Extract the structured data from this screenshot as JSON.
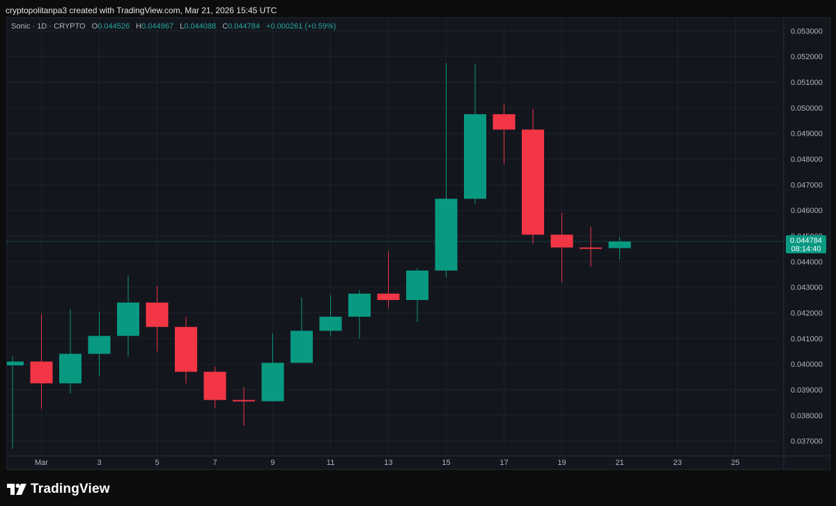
{
  "header": {
    "attribution": "cryptopolitanpa3 created with TradingView.com, Mar 21, 2026 15:45 UTC"
  },
  "legend": {
    "symbol": "Sonic · 1D · CRYPTO",
    "o_label": "O",
    "o_value": "0.044526",
    "h_label": "H",
    "h_value": "0.044967",
    "l_label": "L",
    "l_value": "0.044088",
    "c_label": "C",
    "c_value": "0.044784",
    "change": "+0.000261 (+0.59%)"
  },
  "price_tag": {
    "price": "0.044784",
    "countdown": "08:14:40"
  },
  "footer": {
    "brand": "TradingView"
  },
  "colors": {
    "up": "#089981",
    "down": "#f23645",
    "grid": "#1f222b",
    "axis_text": "#b2b5be"
  },
  "chart_data": {
    "type": "candlestick",
    "title": "",
    "xlabel": "",
    "ylabel": "",
    "ylim": [
      0.0365,
      0.0535
    ],
    "y_ticks": [
      "0.037000",
      "0.038000",
      "0.039000",
      "0.040000",
      "0.041000",
      "0.042000",
      "0.043000",
      "0.044000",
      "0.045000",
      "0.046000",
      "0.047000",
      "0.048000",
      "0.049000",
      "0.050000",
      "0.051000",
      "0.052000",
      "0.053000"
    ],
    "x_ticks": [
      {
        "label": "Mar",
        "day": 1
      },
      {
        "label": "3",
        "day": 3
      },
      {
        "label": "5",
        "day": 5
      },
      {
        "label": "7",
        "day": 7
      },
      {
        "label": "9",
        "day": 9
      },
      {
        "label": "11",
        "day": 11
      },
      {
        "label": "13",
        "day": 13
      },
      {
        "label": "15",
        "day": 15
      },
      {
        "label": "17",
        "day": 17
      },
      {
        "label": "19",
        "day": 19
      },
      {
        "label": "21",
        "day": 21
      },
      {
        "label": "23",
        "day": 23
      },
      {
        "label": "25",
        "day": 25
      }
    ],
    "last_price": 0.044784,
    "candles": [
      {
        "date": "Feb 28",
        "day": 0,
        "open": 0.03995,
        "high": 0.0403,
        "low": 0.0367,
        "close": 0.0401
      },
      {
        "date": "Mar 1",
        "day": 1,
        "open": 0.0401,
        "high": 0.04195,
        "low": 0.03825,
        "close": 0.03925
      },
      {
        "date": "Mar 2",
        "day": 2,
        "open": 0.03925,
        "high": 0.04215,
        "low": 0.03885,
        "close": 0.0404
      },
      {
        "date": "Mar 3",
        "day": 3,
        "open": 0.0404,
        "high": 0.04205,
        "low": 0.03955,
        "close": 0.0411
      },
      {
        "date": "Mar 4",
        "day": 4,
        "open": 0.0411,
        "high": 0.04345,
        "low": 0.0403,
        "close": 0.0424
      },
      {
        "date": "Mar 5",
        "day": 5,
        "open": 0.0424,
        "high": 0.04305,
        "low": 0.0405,
        "close": 0.04145
      },
      {
        "date": "Mar 6",
        "day": 6,
        "open": 0.04145,
        "high": 0.04185,
        "low": 0.03925,
        "close": 0.0397
      },
      {
        "date": "Mar 7",
        "day": 7,
        "open": 0.0397,
        "high": 0.0399,
        "low": 0.0383,
        "close": 0.0386
      },
      {
        "date": "Mar 8",
        "day": 8,
        "open": 0.0386,
        "high": 0.0391,
        "low": 0.0376,
        "close": 0.03855
      },
      {
        "date": "Mar 9",
        "day": 9,
        "open": 0.03855,
        "high": 0.0412,
        "low": 0.03855,
        "close": 0.04005
      },
      {
        "date": "Mar 10",
        "day": 10,
        "open": 0.04005,
        "high": 0.0426,
        "low": 0.04005,
        "close": 0.0413
      },
      {
        "date": "Mar 11",
        "day": 11,
        "open": 0.0413,
        "high": 0.0427,
        "low": 0.0411,
        "close": 0.04185
      },
      {
        "date": "Mar 12",
        "day": 12,
        "open": 0.04185,
        "high": 0.0429,
        "low": 0.041,
        "close": 0.04275
      },
      {
        "date": "Mar 13",
        "day": 13,
        "open": 0.04275,
        "high": 0.0444,
        "low": 0.0422,
        "close": 0.0425
      },
      {
        "date": "Mar 14",
        "day": 14,
        "open": 0.0425,
        "high": 0.04375,
        "low": 0.04165,
        "close": 0.04365
      },
      {
        "date": "Mar 15",
        "day": 15,
        "open": 0.04365,
        "high": 0.05175,
        "low": 0.0434,
        "close": 0.04645
      },
      {
        "date": "Mar 16",
        "day": 16,
        "open": 0.04645,
        "high": 0.0517,
        "low": 0.04625,
        "close": 0.04975
      },
      {
        "date": "Mar 17",
        "day": 17,
        "open": 0.04975,
        "high": 0.05015,
        "low": 0.0478,
        "close": 0.04915
      },
      {
        "date": "Mar 18",
        "day": 18,
        "open": 0.04915,
        "high": 0.04995,
        "low": 0.0447,
        "close": 0.04505
      },
      {
        "date": "Mar 19",
        "day": 19,
        "open": 0.04505,
        "high": 0.0459,
        "low": 0.0432,
        "close": 0.04455
      },
      {
        "date": "Mar 20",
        "day": 20,
        "open": 0.04455,
        "high": 0.04535,
        "low": 0.0438,
        "close": 0.0445
      },
      {
        "date": "Mar 21",
        "day": 21,
        "open": 0.044526,
        "high": 0.044967,
        "low": 0.044088,
        "close": 0.044784
      }
    ]
  }
}
